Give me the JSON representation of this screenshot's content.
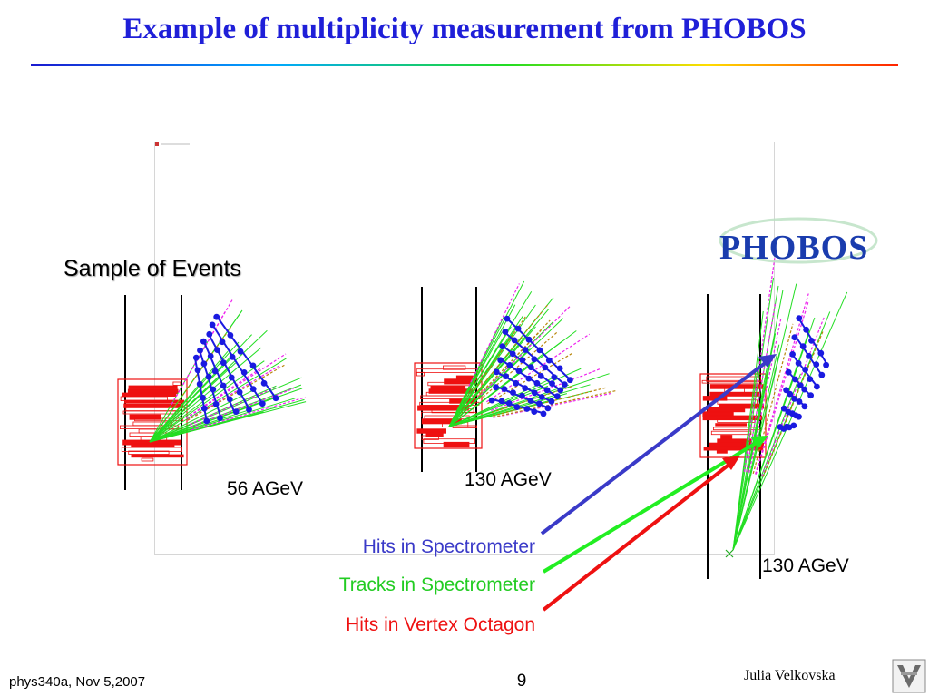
{
  "slide": {
    "title": "Example of multiplicity measurement from PHOBOS",
    "sample_label": "Sample of Events",
    "events": [
      {
        "energy_label": "56 AGeV"
      },
      {
        "energy_label": "130 AGeV"
      },
      {
        "energy_label": "130 AGeV"
      }
    ],
    "legend": [
      {
        "label": "Hits in Spectrometer",
        "color": "#3a3ac8"
      },
      {
        "label": "Tracks in Spectrometer",
        "color": "#22cc22"
      },
      {
        "label": "Hits in Vertex Octagon",
        "color": "#ee1111"
      }
    ],
    "logo_text": "PHOBOS"
  },
  "footer": {
    "course_date": "phys340a, Nov 5,2007",
    "page_number": "9",
    "author": "Julia Velkovska"
  },
  "colors": {
    "title": "#1f1fd8",
    "hits": "#1a1ae0",
    "tracks": "#22dd22",
    "octagon": "#ee1111",
    "magenta_tracks": "#ee22ee"
  }
}
